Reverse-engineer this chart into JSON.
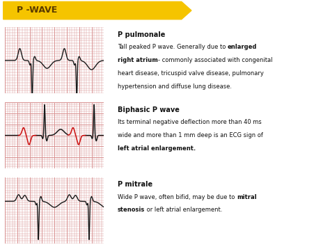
{
  "title": "P -WAVE",
  "title_bg": "#F5C400",
  "title_text_color": "#5a3a00",
  "bg_color": "#ffffff",
  "row1_bg": "#f0c8c8",
  "row2_bg": "#e8e4c0",
  "row3_bg": "#f0c8c8",
  "ecg_bg": "#f5d0d0",
  "ecg_grid_minor": "#d89090",
  "ecg_grid_major": "#c07070",
  "ecg_line_color": "#1a1a1a",
  "ecg_red_color": "#cc1111",
  "text_color": "#111111",
  "sections": [
    {
      "wave_type": "pulmonale",
      "section_title": "P pulmonale",
      "lines": [
        {
          "text": "Tall peaked P wave. Generally due to ",
          "bold": false
        },
        {
          "text": "enlarged",
          "bold": true
        },
        {
          "text": " ",
          "bold": false
        },
        {
          "text": "right atrium",
          "bold": true
        },
        {
          "text": "- commonly associated with congenital",
          "bold": false
        },
        {
          "text": "heart disease, tricuspid valve disease, pulmonary",
          "bold": false
        },
        {
          "text": "hypertension and diffuse lung disease.",
          "bold": false
        }
      ]
    },
    {
      "wave_type": "biphasic",
      "section_title": "Biphasic P wave",
      "lines": [
        {
          "text": "Its terminal negative deflection more than 40 ms",
          "bold": false
        },
        {
          "text": "wide and more than 1 mm deep is an ECG sign of",
          "bold": false
        },
        {
          "text": "left atrial enlargement.",
          "bold": true
        }
      ]
    },
    {
      "wave_type": "mitrale",
      "section_title": "P mitrale",
      "lines": [
        {
          "text": "Wide P wave, often bifid, may be due to ",
          "bold": false
        },
        {
          "text": "mitral",
          "bold": true
        },
        {
          "text": " ",
          "bold": false
        },
        {
          "text": "stenosis",
          "bold": true
        },
        {
          "text": " or left atrial enlargement.",
          "bold": false
        }
      ]
    }
  ]
}
